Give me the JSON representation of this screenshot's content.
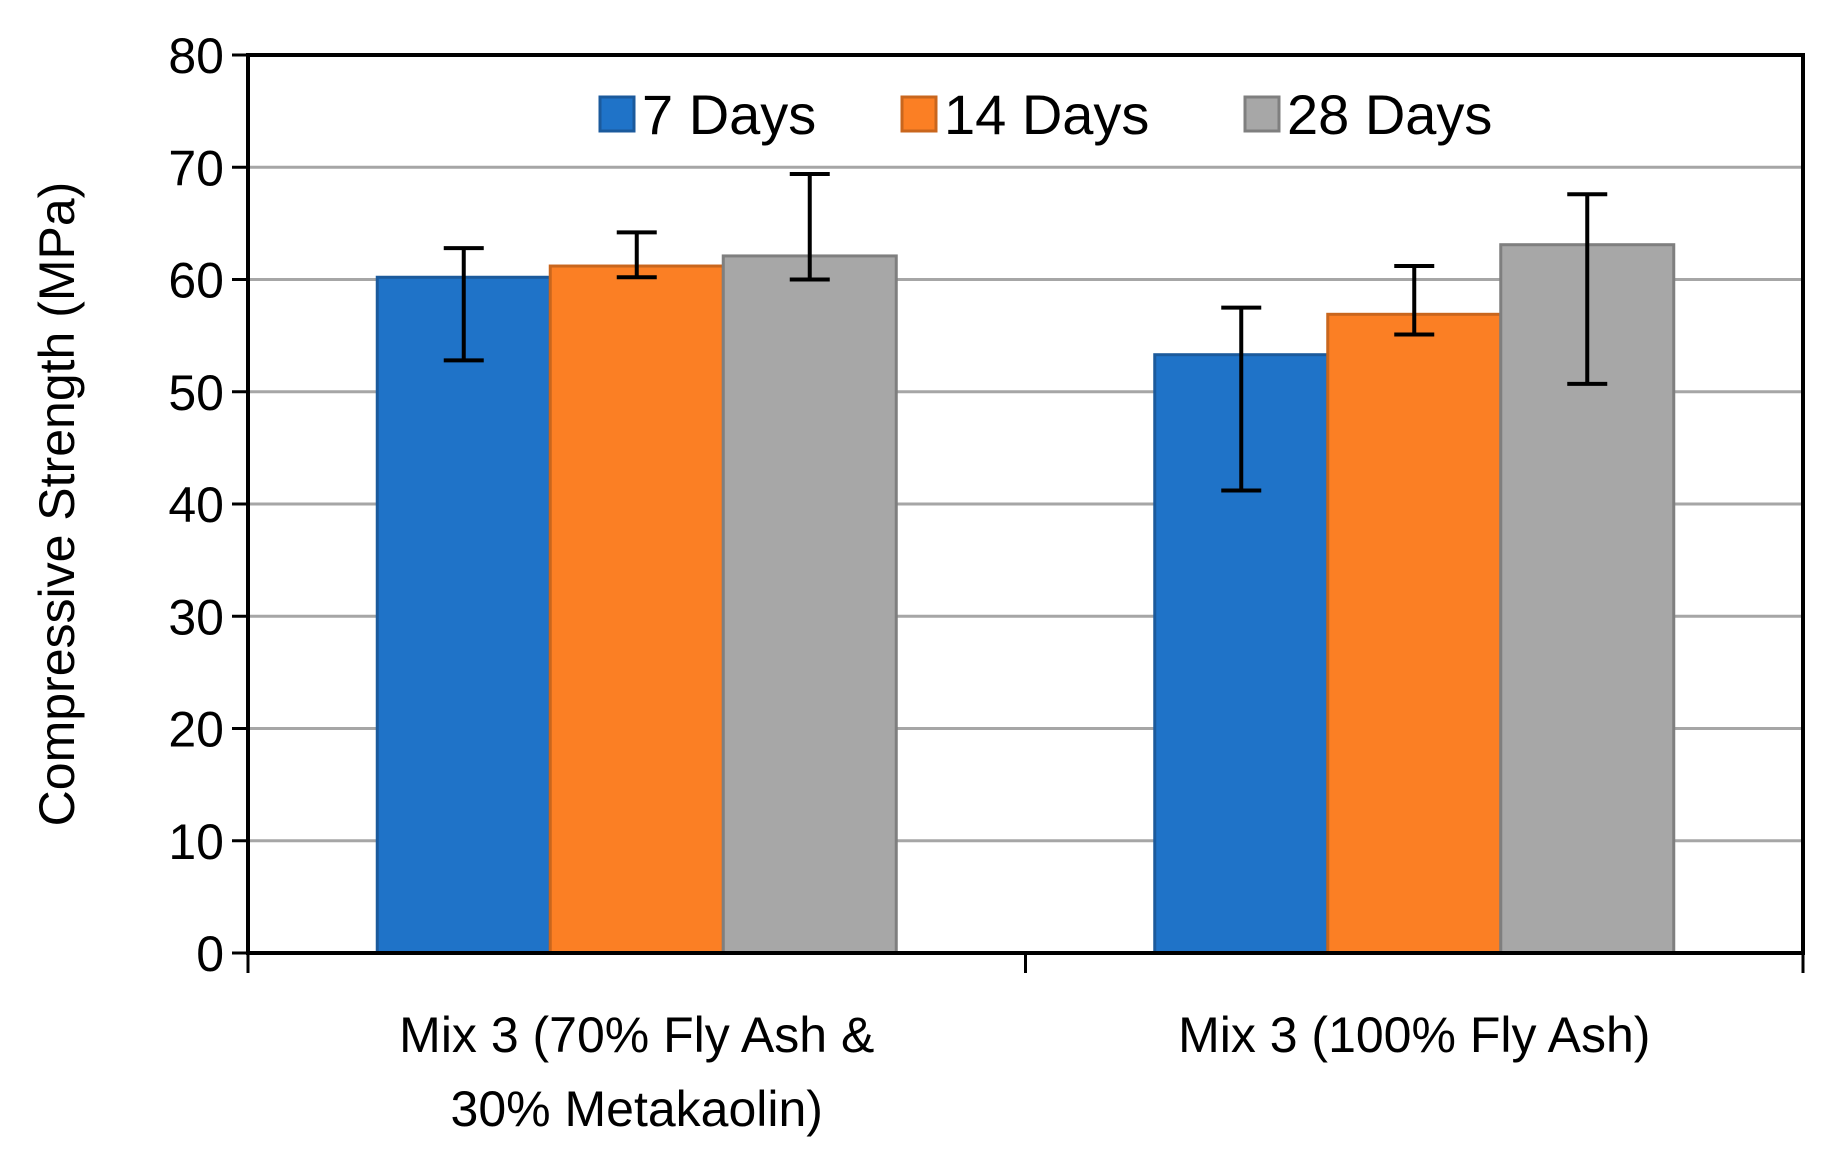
{
  "chart_data": {
    "type": "bar",
    "title": "",
    "xlabel": "",
    "ylabel": "Compressive Strength (MPa)",
    "ylim": [
      0,
      80
    ],
    "yticks": [
      0,
      10,
      20,
      30,
      40,
      50,
      60,
      70,
      80
    ],
    "grid": true,
    "legend_position": "top-center",
    "categories": [
      [
        "Mix 3 (70% Fly Ash &",
        "30% Metakaolin)"
      ],
      [
        "Mix 3 (100% Fly Ash)"
      ]
    ],
    "series": [
      {
        "name": "7 Days",
        "color": "#1F73C8",
        "edge": "#1B5A9C",
        "values": [
          60.2,
          53.3
        ],
        "error_low": [
          52.8,
          41.2
        ],
        "error_high": [
          62.8,
          57.5
        ]
      },
      {
        "name": "14 Days",
        "color": "#FB7F24",
        "edge": "#C9661D",
        "values": [
          61.2,
          56.9
        ],
        "error_low": [
          60.2,
          55.1
        ],
        "error_high": [
          64.2,
          61.2
        ]
      },
      {
        "name": "28 Days",
        "color": "#A7A7A7",
        "edge": "#7F7F7F",
        "values": [
          62.1,
          63.1
        ],
        "error_low": [
          60.0,
          50.7
        ],
        "error_high": [
          69.4,
          67.6
        ]
      }
    ]
  }
}
